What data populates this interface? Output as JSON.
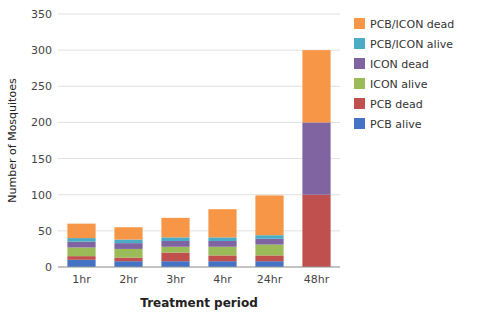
{
  "chart_data": {
    "type": "bar",
    "stacked": true,
    "xlabel": "Treatment period",
    "ylabel": "Number of Mosquitoes",
    "categories": [
      "1hr",
      "2hr",
      "3hr",
      "4hr",
      "24hr",
      "48hr"
    ],
    "series": [
      {
        "name": "PCB alive",
        "color": "#4472C4",
        "values": [
          10,
          8,
          8,
          8,
          8,
          0
        ]
      },
      {
        "name": "PCB dead",
        "color": "#C0504D",
        "values": [
          5,
          5,
          12,
          8,
          8,
          100
        ]
      },
      {
        "name": "ICON alive",
        "color": "#9BBB59",
        "values": [
          12,
          12,
          8,
          12,
          15,
          0
        ]
      },
      {
        "name": "ICON dead",
        "color": "#8064A2",
        "values": [
          8,
          8,
          8,
          8,
          8,
          100
        ]
      },
      {
        "name": "PCB/ICON alive",
        "color": "#4BACC6",
        "values": [
          5,
          5,
          5,
          5,
          5,
          0
        ]
      },
      {
        "name": "PCB/ICON dead",
        "color": "#F79646",
        "values": [
          20,
          17,
          27,
          39,
          55,
          100
        ]
      }
    ],
    "ylim": [
      0,
      350
    ],
    "yticks": [
      0,
      50,
      100,
      150,
      200,
      250,
      300,
      350
    ],
    "grid": true,
    "legend": "right"
  }
}
